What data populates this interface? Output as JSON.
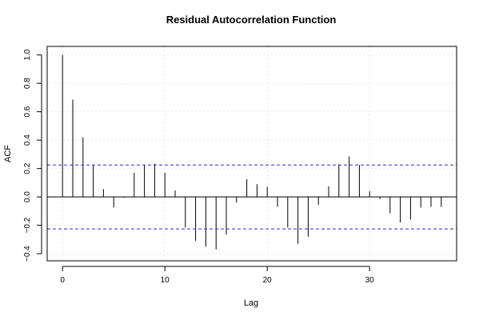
{
  "chart_data": {
    "type": "bar",
    "title": "Residual Autocorrelation Function",
    "xlabel": "Lag",
    "ylabel": "ACF",
    "xlim": [
      -1.5,
      38.5
    ],
    "ylim": [
      -0.45,
      1.06
    ],
    "x_ticks": [
      0,
      10,
      20,
      30
    ],
    "y_ticks": [
      -0.4,
      -0.2,
      0.0,
      0.2,
      0.4,
      0.6,
      0.8,
      1.0
    ],
    "y_tick_labels": [
      "−0.4",
      "−0.2",
      "0.0",
      "0.2",
      "0.4",
      "0.6",
      "0.8",
      "1.0"
    ],
    "grid": true,
    "confidence_bounds": [
      0.225,
      -0.225
    ],
    "lags": [
      0,
      1,
      2,
      3,
      4,
      5,
      6,
      7,
      8,
      9,
      10,
      11,
      12,
      13,
      14,
      15,
      16,
      17,
      18,
      19,
      20,
      21,
      22,
      23,
      24,
      25,
      26,
      27,
      28,
      29,
      30,
      31,
      32,
      33,
      34,
      35,
      36,
      37
    ],
    "values": [
      1.0,
      0.685,
      0.42,
      0.225,
      0.055,
      -0.075,
      -0.005,
      0.17,
      0.225,
      0.235,
      0.17,
      0.045,
      -0.215,
      -0.31,
      -0.35,
      -0.37,
      -0.265,
      -0.04,
      0.125,
      0.09,
      0.07,
      -0.07,
      -0.215,
      -0.33,
      -0.28,
      -0.055,
      0.075,
      0.23,
      0.285,
      0.225,
      0.04,
      -0.015,
      -0.115,
      -0.18,
      -0.16,
      -0.075,
      -0.07,
      -0.07
    ],
    "colors": {
      "bars": "#000000",
      "confidence": "#2b2bd6",
      "grid": "#e6e6e6",
      "zero_line": "#000000"
    }
  }
}
